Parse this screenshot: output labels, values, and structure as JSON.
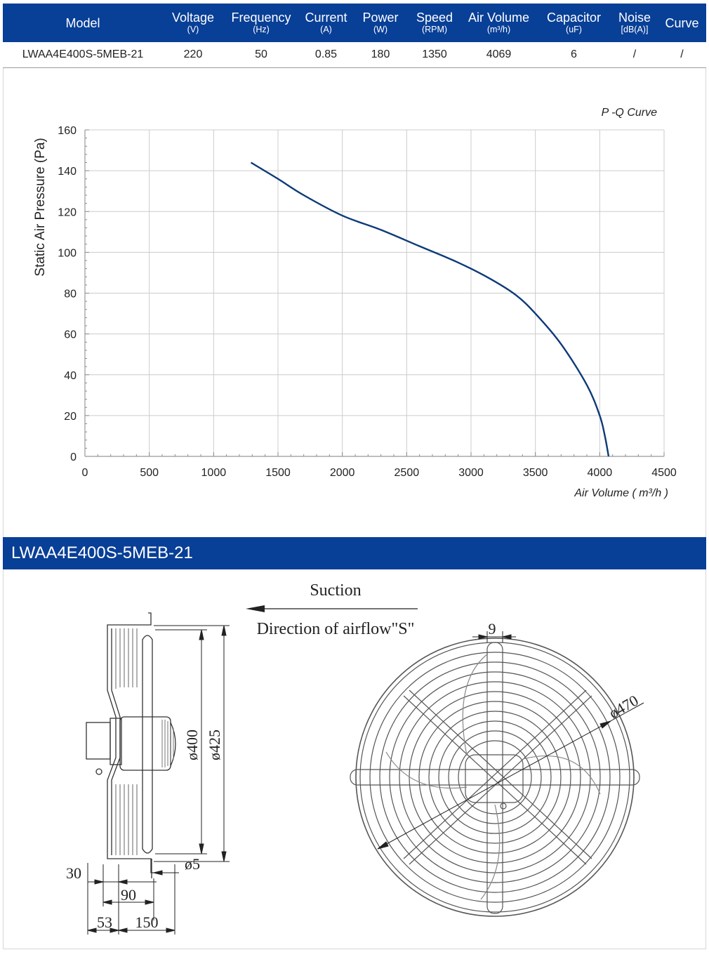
{
  "specs": {
    "columns": [
      {
        "key": "model",
        "label": "Model",
        "unit": ""
      },
      {
        "key": "voltage",
        "label": "Voltage",
        "unit": "(V)"
      },
      {
        "key": "frequency",
        "label": "Frequency",
        "unit": "(Hz)"
      },
      {
        "key": "current",
        "label": "Current",
        "unit": "(A)"
      },
      {
        "key": "power",
        "label": "Power",
        "unit": "(W)"
      },
      {
        "key": "speed",
        "label": "Speed",
        "unit": "(RPM)"
      },
      {
        "key": "air_volume",
        "label": "Air Volume",
        "unit": "(m³/h)"
      },
      {
        "key": "capacitor",
        "label": "Capacitor",
        "unit": "(uF)"
      },
      {
        "key": "noise",
        "label": "Noise",
        "unit": "[dB(A)]"
      },
      {
        "key": "curve",
        "label": "Curve",
        "unit": ""
      }
    ],
    "row": {
      "model": "LWAA4E400S-5MEB-21",
      "voltage": "220",
      "frequency": "50",
      "current": "0.85",
      "power": "180",
      "speed": "1350",
      "air_volume": "4069",
      "capacitor": "6",
      "noise": "/",
      "curve": "/"
    }
  },
  "chart_data": {
    "type": "line",
    "title": "P -Q Curve",
    "xlabel": "Air Volume ( m³/h )",
    "ylabel": "Static Air Pressure  (Pa)",
    "xlim": [
      0,
      4500
    ],
    "ylim": [
      0,
      160
    ],
    "xticks": [
      0,
      500,
      1000,
      1500,
      2000,
      2500,
      3000,
      3500,
      4000,
      4500
    ],
    "yticks": [
      0,
      20,
      40,
      60,
      80,
      100,
      120,
      140,
      160
    ],
    "grid": true,
    "line_color": "#0d3a78",
    "series": [
      {
        "x": [
          1290,
          1500,
          1700,
          2000,
          2300,
          2600,
          2900,
          3150,
          3350,
          3500,
          3700,
          3900,
          4000,
          4040,
          4069
        ],
        "y": [
          144,
          136,
          128,
          118,
          111,
          103,
          95,
          87,
          79,
          70,
          55,
          35,
          20,
          10,
          0
        ]
      }
    ]
  },
  "section": {
    "title": "LWAA4E400S-5MEB-21"
  },
  "drawing": {
    "suction_label": "Suction",
    "airflow_label": "Direction of airflow\"S\"",
    "dims": {
      "d400": "ø400",
      "d425": "ø425",
      "d5": "ø5",
      "d30": "30",
      "d90": "90",
      "d53": "53",
      "d150": "150",
      "d9": "9",
      "d470": "ø470"
    }
  },
  "colors": {
    "header_bg": "#083f97",
    "curve": "#0d3a78",
    "grid": "#cccccc"
  }
}
